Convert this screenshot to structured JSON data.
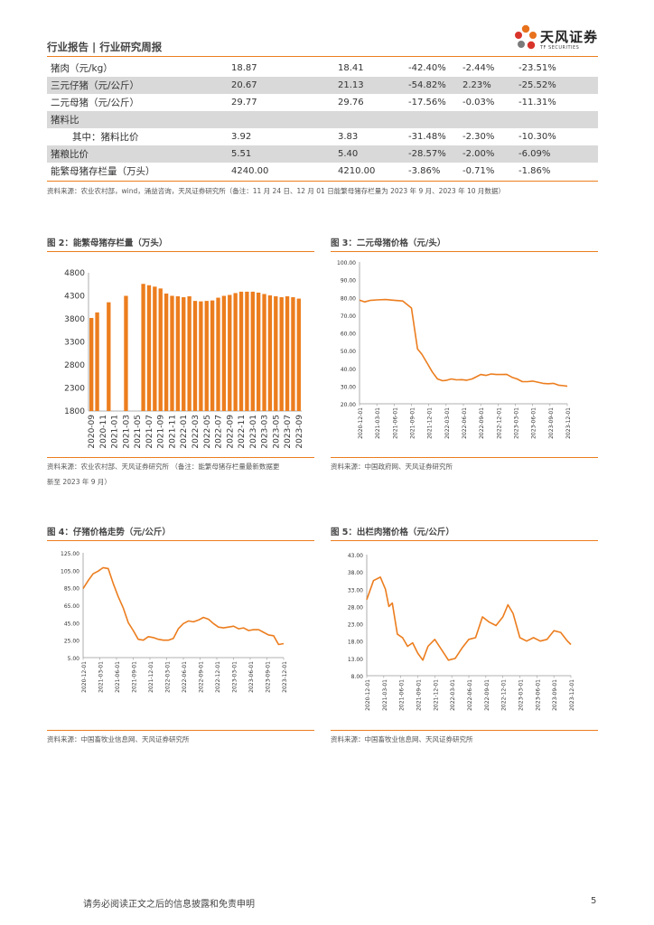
{
  "header": {
    "title": "行业报告 | 行业研究周报",
    "logo_name": "天风证券",
    "logo_sub": "TF SECURITIES",
    "logo_colors": [
      "#e8711c",
      "#d8342b",
      "#7a7a7a"
    ]
  },
  "table": {
    "rows": [
      {
        "label": "猪肉（元/kg）",
        "v1": "18.87",
        "v2": "18.41",
        "v3": "-42.40%",
        "v4": "-2.44%",
        "v5": "-23.51%",
        "shaded": false,
        "indent": false
      },
      {
        "label": "三元仔猪（元/公斤）",
        "v1": "20.67",
        "v2": "21.13",
        "v3": "-54.82%",
        "v4": "2.23%",
        "v5": "-25.52%",
        "shaded": true,
        "indent": false
      },
      {
        "label": "二元母猪（元/公斤）",
        "v1": "29.77",
        "v2": "29.76",
        "v3": "-17.56%",
        "v4": "-0.03%",
        "v5": "-11.31%",
        "shaded": false,
        "indent": false
      },
      {
        "label": "猪料比",
        "v1": "",
        "v2": "",
        "v3": "",
        "v4": "",
        "v5": "",
        "shaded": true,
        "indent": false
      },
      {
        "label": "其中：猪料比价",
        "v1": "3.92",
        "v2": "3.83",
        "v3": "-31.48%",
        "v4": "-2.30%",
        "v5": "-10.30%",
        "shaded": false,
        "indent": true
      },
      {
        "label": "猪粮比价",
        "v1": "5.51",
        "v2": "5.40",
        "v3": "-28.57%",
        "v4": "-2.00%",
        "v5": "-6.09%",
        "shaded": true,
        "indent": false
      },
      {
        "label": "能繁母猪存栏量（万头）",
        "v1": "4240.00",
        "v2": "4210.00",
        "v3": "-3.86%",
        "v4": "-0.71%",
        "v5": "-1.86%",
        "shaded": false,
        "indent": false
      }
    ],
    "note": "资料来源：农业农村部，wind，涌益咨询，天风证券研究所（备注：11 月 24 日、12 月 01 日能繁母猪存栏量为 2023 年 9 月、2023 年 10 月数据）"
  },
  "figures": {
    "fig2": {
      "title": "图 2：能繁母猪存栏量（万头）",
      "source_line1": "资料来源：农业农村部、天风证券研究所 （备注：能繁母猪存栏量最新数据更",
      "source_line2": "新至 2023 年 9 月）"
    },
    "fig3": {
      "title": "图 3：二元母猪价格（元/头）",
      "source": "资料来源：中国政府网、天风证券研究所"
    },
    "fig4": {
      "title": "图 4：仔猪价格走势（元/公斤）",
      "source": "资料来源：中国畜牧业信息网、天风证券研究所"
    },
    "fig5": {
      "title": "图 5：出栏肉猪价格（元/公斤）",
      "source": "资料来源：中国畜牧业信息网、天风证券研究所"
    }
  },
  "footer": {
    "text": "请务必阅读正文之后的信息披露和免责申明",
    "page": "5"
  },
  "chart_data": [
    {
      "id": "fig2",
      "type": "bar",
      "color": "#ec7d1e",
      "yticks": [
        "4800",
        "4300",
        "3800",
        "3300",
        "2800",
        "2300",
        "1800"
      ],
      "ylim": [
        1800,
        4800
      ],
      "xticks": [
        "2020-09",
        "2020-11",
        "2021-01",
        "2021-03",
        "2021-05",
        "2021-07",
        "2021-09",
        "2021-11",
        "2022-01",
        "2022-03",
        "2022-05",
        "2022-07",
        "2022-09",
        "2022-11",
        "2023-01",
        "2023-03",
        "2023-05",
        "2023-07",
        "2023-09"
      ],
      "categories": [
        "2020-09",
        "2020-10",
        "2020-11",
        "2020-12",
        "2021-01",
        "2021-02",
        "2021-03",
        "2021-04",
        "2021-05",
        "2021-06",
        "2021-07",
        "2021-08",
        "2021-09",
        "2021-10",
        "2021-11",
        "2021-12",
        "2022-01",
        "2022-02",
        "2022-03",
        "2022-04",
        "2022-05",
        "2022-06",
        "2022-07",
        "2022-08",
        "2022-09",
        "2022-10",
        "2022-11",
        "2022-12",
        "2023-01",
        "2023-02",
        "2023-03",
        "2023-04",
        "2023-05",
        "2023-06",
        "2023-07",
        "2023-08",
        "2023-09"
      ],
      "values": [
        3820,
        3940,
        null,
        4160,
        null,
        null,
        4300,
        null,
        null,
        4560,
        4530,
        4500,
        4460,
        4350,
        4300,
        4290,
        4270,
        4290,
        4190,
        4180,
        4190,
        4200,
        4260,
        4300,
        4320,
        4360,
        4390,
        4390,
        4390,
        4370,
        4340,
        4310,
        4290,
        4270,
        4290,
        4270,
        4240
      ]
    },
    {
      "id": "fig3",
      "type": "line",
      "color": "#ec7d1e",
      "yticks": [
        "100.00",
        "90.00",
        "80.00",
        "70.00",
        "60.00",
        "50.00",
        "40.00",
        "30.00",
        "20.00"
      ],
      "ylim": [
        20,
        100
      ],
      "xticks": [
        "2020-12-01",
        "2021-03-01",
        "2021-06-01",
        "2021-09-01",
        "2021-12-01",
        "2022-03-01",
        "2022-06-01",
        "2022-09-01",
        "2022-12-01",
        "2023-03-01",
        "2023-06-01",
        "2023-09-01",
        "2023-12-01"
      ],
      "x": [
        0,
        0.3,
        0.6,
        1,
        1.5,
        2,
        2.5,
        3,
        3.15,
        3.35,
        3.6,
        3.9,
        4.2,
        4.5,
        4.8,
        5,
        5.3,
        5.6,
        5.9,
        6.2,
        6.5,
        6.8,
        7,
        7.3,
        7.6,
        7.9,
        8.2,
        8.5,
        8.8,
        9.1,
        9.4,
        9.7,
        10,
        10.3,
        10.6,
        10.9,
        11.2,
        11.5,
        11.8,
        12
      ],
      "values": [
        78.5,
        77.5,
        78.3,
        78.6,
        78.8,
        78.4,
        78,
        74,
        64,
        51,
        48,
        43,
        38,
        34,
        33,
        33.2,
        34,
        33.5,
        33.6,
        33.3,
        34,
        35.5,
        36.5,
        36,
        36.8,
        36.5,
        36.5,
        36.6,
        35,
        34,
        32.5,
        32.5,
        32.8,
        32.2,
        31.5,
        31.3,
        31.5,
        30.5,
        30.2,
        29.9
      ]
    },
    {
      "id": "fig4",
      "type": "line",
      "color": "#ec7d1e",
      "yticks": [
        "125.00",
        "105.00",
        "85.00",
        "65.00",
        "45.00",
        "25.00",
        "5.00"
      ],
      "ylim": [
        5,
        125
      ],
      "xticks": [
        "2020-12-01",
        "2021-03-01",
        "2021-06-01",
        "2021-09-01",
        "2021-12-01",
        "2022-03-01",
        "2022-06-01",
        "2022-09-01",
        "2022-12-01",
        "2023-03-01",
        "2023-06-01",
        "2023-09-01",
        "2023-12-01"
      ],
      "x": [
        0,
        0.3,
        0.6,
        0.9,
        1.2,
        1.5,
        1.8,
        2.1,
        2.4,
        2.7,
        3,
        3.3,
        3.6,
        3.9,
        4.2,
        4.5,
        4.8,
        5.1,
        5.4,
        5.7,
        6,
        6.3,
        6.6,
        6.9,
        7.2,
        7.5,
        7.8,
        8.1,
        8.4,
        8.7,
        9,
        9.3,
        9.6,
        9.9,
        10.2,
        10.5,
        10.8,
        11.1,
        11.4,
        11.7,
        12
      ],
      "values": [
        84,
        93,
        101,
        104,
        108,
        107,
        90,
        75,
        62,
        45,
        36,
        26,
        25,
        29,
        28,
        26,
        25,
        25,
        27,
        38,
        44,
        47,
        46,
        48,
        51,
        49,
        44,
        40,
        39,
        40,
        41,
        38,
        39,
        36,
        37,
        37,
        34,
        31,
        30,
        20,
        21
      ]
    },
    {
      "id": "fig5",
      "type": "line",
      "color": "#ec7d1e",
      "yticks": [
        "43.00",
        "38.00",
        "33.00",
        "28.00",
        "23.00",
        "18.00",
        "13.00",
        "8.00"
      ],
      "ylim": [
        8,
        43
      ],
      "xticks": [
        "2020-12-01",
        "2021-03-01",
        "2021-06-01",
        "2021-09-01",
        "2021-12-01",
        "2022-03-01",
        "2022-06-01",
        "2022-09-01",
        "2022-12-01",
        "2023-03-01",
        "2023-06-01",
        "2023-09-01",
        "2023-12-01"
      ],
      "x": [
        0,
        0.4,
        0.8,
        1.1,
        1.3,
        1.5,
        1.8,
        2.1,
        2.4,
        2.7,
        3,
        3.3,
        3.6,
        4,
        4.4,
        4.8,
        5.2,
        5.6,
        6,
        6.4,
        6.8,
        7.2,
        7.6,
        8,
        8.3,
        8.6,
        9,
        9.4,
        9.8,
        10.2,
        10.6,
        11,
        11.4,
        11.8,
        12
      ],
      "values": [
        30,
        35.5,
        36.5,
        33,
        28,
        29,
        20,
        19,
        16.5,
        17.5,
        14.5,
        12.5,
        16.5,
        18.5,
        15.5,
        12.5,
        13,
        16,
        18.5,
        19,
        25,
        23.5,
        22.5,
        25,
        28.5,
        26,
        19,
        18,
        19,
        18,
        18.5,
        21,
        20.5,
        18,
        17
      ]
    }
  ]
}
